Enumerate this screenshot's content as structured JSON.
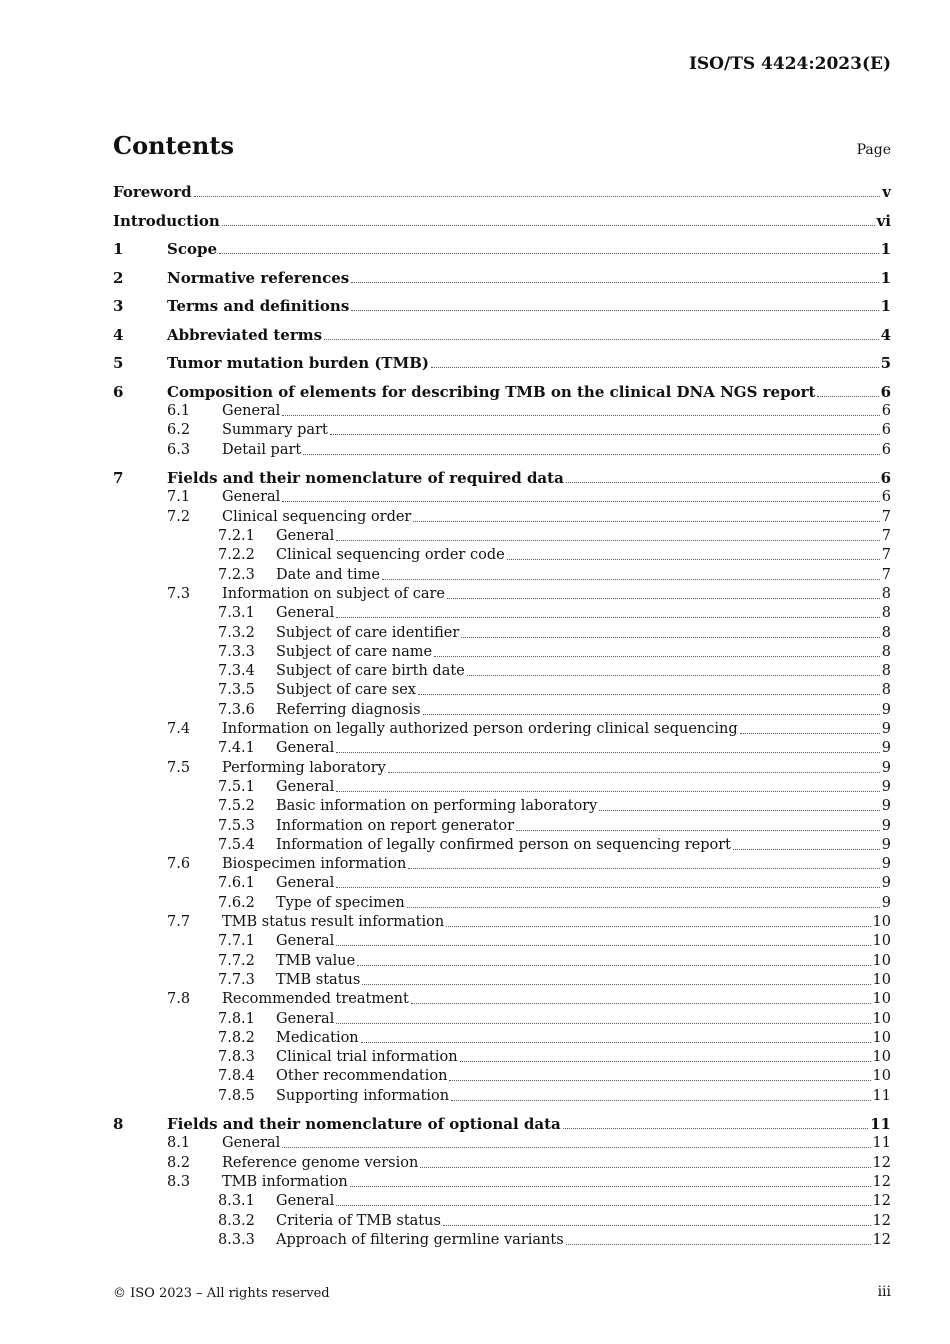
{
  "header": {
    "doc_id": "ISO/TS 4424:2023(E)"
  },
  "title": "Contents",
  "page_label": "Page",
  "entries": [
    {
      "level": 0,
      "num": "",
      "title": "Foreword",
      "page": "v"
    },
    {
      "level": 0,
      "num": "",
      "title": "Introduction",
      "page": "vi"
    },
    {
      "level": 0,
      "num": "1",
      "title": "Scope",
      "page": "1"
    },
    {
      "level": 0,
      "num": "2",
      "title": "Normative references",
      "page": "1"
    },
    {
      "level": 0,
      "num": "3",
      "title": "Terms and definitions",
      "page": "1"
    },
    {
      "level": 0,
      "num": "4",
      "title": "Abbreviated terms",
      "page": "4"
    },
    {
      "level": 0,
      "num": "5",
      "title": "Tumor mutation burden (TMB)",
      "page": "5"
    },
    {
      "level": 0,
      "num": "6",
      "title": "Composition of elements for describing TMB on the clinical DNA NGS report",
      "page": "6"
    },
    {
      "level": 1,
      "num": "6.1",
      "title": "General",
      "page": "6"
    },
    {
      "level": 1,
      "num": "6.2",
      "title": "Summary part",
      "page": "6"
    },
    {
      "level": 1,
      "num": "6.3",
      "title": "Detail part",
      "page": "6"
    },
    {
      "level": 0,
      "num": "7",
      "title": "Fields and their nomenclature of required data",
      "page": "6"
    },
    {
      "level": 1,
      "num": "7.1",
      "title": "General",
      "page": "6"
    },
    {
      "level": 1,
      "num": "7.2",
      "title": "Clinical sequencing order",
      "page": "7"
    },
    {
      "level": 2,
      "num": "7.2.1",
      "title": "General",
      "page": "7"
    },
    {
      "level": 2,
      "num": "7.2.2",
      "title": "Clinical sequencing order code",
      "page": "7"
    },
    {
      "level": 2,
      "num": "7.2.3",
      "title": "Date and time",
      "page": "7"
    },
    {
      "level": 1,
      "num": "7.3",
      "title": "Information on subject of care",
      "page": "8"
    },
    {
      "level": 2,
      "num": "7.3.1",
      "title": "General",
      "page": "8"
    },
    {
      "level": 2,
      "num": "7.3.2",
      "title": "Subject of care identifier",
      "page": "8"
    },
    {
      "level": 2,
      "num": "7.3.3",
      "title": "Subject of care name",
      "page": "8"
    },
    {
      "level": 2,
      "num": "7.3.4",
      "title": "Subject of care birth date",
      "page": "8"
    },
    {
      "level": 2,
      "num": "7.3.5",
      "title": "Subject of care sex",
      "page": "8"
    },
    {
      "level": 2,
      "num": "7.3.6",
      "title": "Referring diagnosis",
      "page": "9"
    },
    {
      "level": 1,
      "num": "7.4",
      "title": "Information on legally authorized person ordering clinical sequencing",
      "page": "9"
    },
    {
      "level": 2,
      "num": "7.4.1",
      "title": "General",
      "page": "9"
    },
    {
      "level": 1,
      "num": "7.5",
      "title": "Performing laboratory",
      "page": "9"
    },
    {
      "level": 2,
      "num": "7.5.1",
      "title": "General",
      "page": "9"
    },
    {
      "level": 2,
      "num": "7.5.2",
      "title": "Basic information on performing laboratory",
      "page": "9"
    },
    {
      "level": 2,
      "num": "7.5.3",
      "title": "Information on report generator",
      "page": "9"
    },
    {
      "level": 2,
      "num": "7.5.4",
      "title": "Information of legally confirmed person on sequencing report",
      "page": "9"
    },
    {
      "level": 1,
      "num": "7.6",
      "title": "Biospecimen information",
      "page": "9"
    },
    {
      "level": 2,
      "num": "7.6.1",
      "title": "General",
      "page": "9"
    },
    {
      "level": 2,
      "num": "7.6.2",
      "title": "Type of specimen",
      "page": "9"
    },
    {
      "level": 1,
      "num": "7.7",
      "title": "TMB status result information",
      "page": "10"
    },
    {
      "level": 2,
      "num": "7.7.1",
      "title": "General",
      "page": "10"
    },
    {
      "level": 2,
      "num": "7.7.2",
      "title": "TMB value",
      "page": "10"
    },
    {
      "level": 2,
      "num": "7.7.3",
      "title": "TMB status",
      "page": "10"
    },
    {
      "level": 1,
      "num": "7.8",
      "title": "Recommended treatment",
      "page": "10"
    },
    {
      "level": 2,
      "num": "7.8.1",
      "title": "General",
      "page": "10"
    },
    {
      "level": 2,
      "num": "7.8.2",
      "title": "Medication",
      "page": "10"
    },
    {
      "level": 2,
      "num": "7.8.3",
      "title": "Clinical trial information",
      "page": "10"
    },
    {
      "level": 2,
      "num": "7.8.4",
      "title": "Other recommendation",
      "page": "10"
    },
    {
      "level": 2,
      "num": "7.8.5",
      "title": "Supporting information",
      "page": "11"
    },
    {
      "level": 0,
      "num": "8",
      "title": "Fields and their nomenclature of optional data",
      "page": "11"
    },
    {
      "level": 1,
      "num": "8.1",
      "title": "General",
      "page": "11"
    },
    {
      "level": 1,
      "num": "8.2",
      "title": "Reference genome version",
      "page": "12"
    },
    {
      "level": 1,
      "num": "8.3",
      "title": "TMB information",
      "page": "12"
    },
    {
      "level": 2,
      "num": "8.3.1",
      "title": "General",
      "page": "12"
    },
    {
      "level": 2,
      "num": "8.3.2",
      "title": "Criteria of TMB status",
      "page": "12"
    },
    {
      "level": 2,
      "num": "8.3.3",
      "title": "Approach of filtering germline variants",
      "page": "12"
    }
  ],
  "footer": {
    "copyright": "© ISO 2023 – All rights reserved",
    "folio": "iii"
  }
}
